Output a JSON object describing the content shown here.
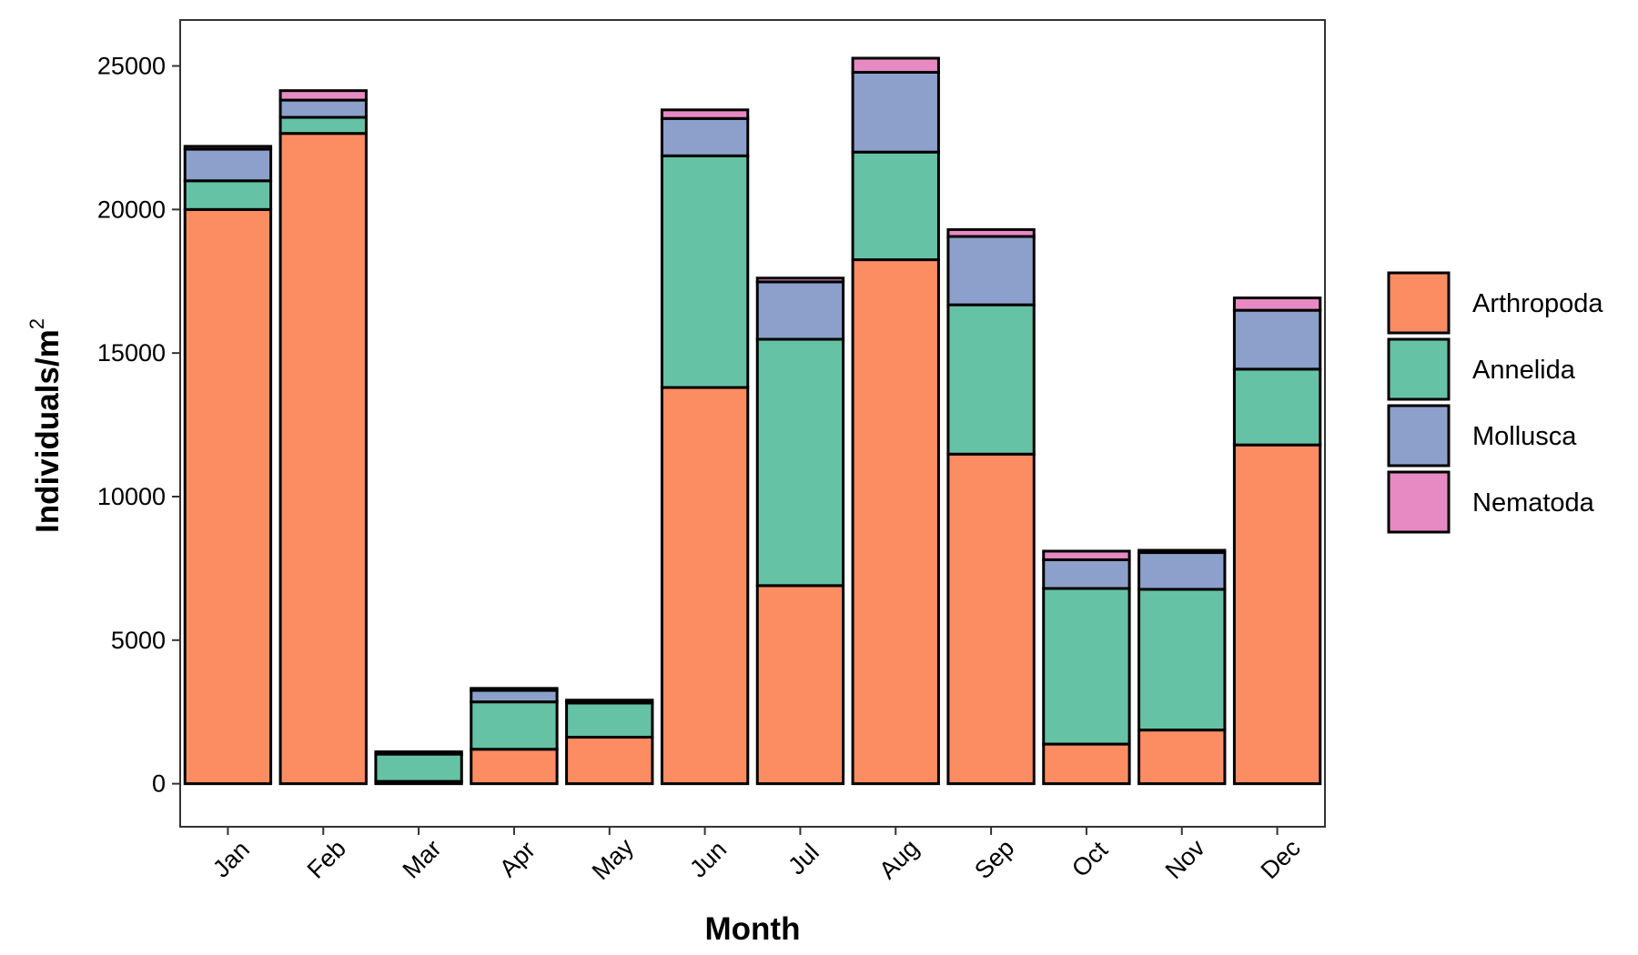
{
  "chart_data": {
    "type": "bar",
    "stacked": true,
    "categories": [
      "Jan",
      "Feb",
      "Mar",
      "Apr",
      "May",
      "Jun",
      "Jul",
      "Aug",
      "Sep",
      "Oct",
      "Nov",
      "Dec"
    ],
    "series": [
      {
        "name": "Arthropoda",
        "color": "#FC8D62",
        "values": [
          20000,
          22650,
          80,
          1200,
          1620,
          13800,
          6900,
          18250,
          11480,
          1380,
          1870,
          11800
        ]
      },
      {
        "name": "Annelida",
        "color": "#66C2A5",
        "values": [
          1000,
          560,
          950,
          1650,
          1190,
          8070,
          8580,
          3750,
          5200,
          5420,
          4900,
          2640
        ]
      },
      {
        "name": "Mollusca",
        "color": "#8DA0CB",
        "values": [
          1100,
          600,
          0,
          400,
          50,
          1300,
          2000,
          2780,
          2380,
          1000,
          1280,
          2050
        ]
      },
      {
        "name": "Nematoda",
        "color": "#E78AC3",
        "values": [
          100,
          330,
          80,
          70,
          50,
          300,
          130,
          490,
          240,
          300,
          80,
          430
        ]
      }
    ],
    "title": "",
    "xlabel": "Month",
    "ylabel_main": "Individuals/m",
    "ylabel_sup": "2",
    "ylim": [
      -1500,
      26600
    ],
    "yticks": [
      0,
      5000,
      10000,
      15000,
      20000,
      25000
    ],
    "ytick_labels": [
      "0",
      "5000",
      "10000",
      "15000",
      "20000",
      "25000"
    ],
    "grid": false,
    "legend_position": "right",
    "bar_outline_color": "#000000"
  }
}
